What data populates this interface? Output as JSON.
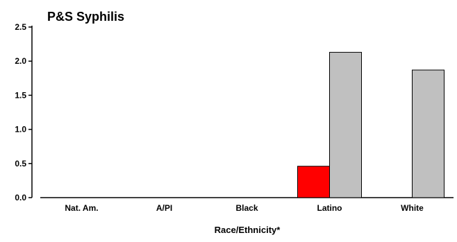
{
  "chart_data": {
    "type": "bar",
    "title": "P&S Syphilis",
    "xlabel": "Race/Ethnicity*",
    "ylabel": "",
    "categories": [
      "Nat. Am.",
      "A/PI",
      "Black",
      "Latino",
      "White"
    ],
    "series": [
      {
        "color": "#ff0000",
        "values": [
          0,
          0,
          0,
          0.46,
          0
        ]
      },
      {
        "color": "#c0c0c0",
        "values": [
          0,
          0,
          0,
          2.13,
          1.87
        ]
      }
    ],
    "ylim": [
      0,
      2.5
    ],
    "yticks": [
      "0.0",
      "0.5",
      "1.0",
      "1.5",
      "2.0",
      "2.5"
    ],
    "grid": false
  }
}
